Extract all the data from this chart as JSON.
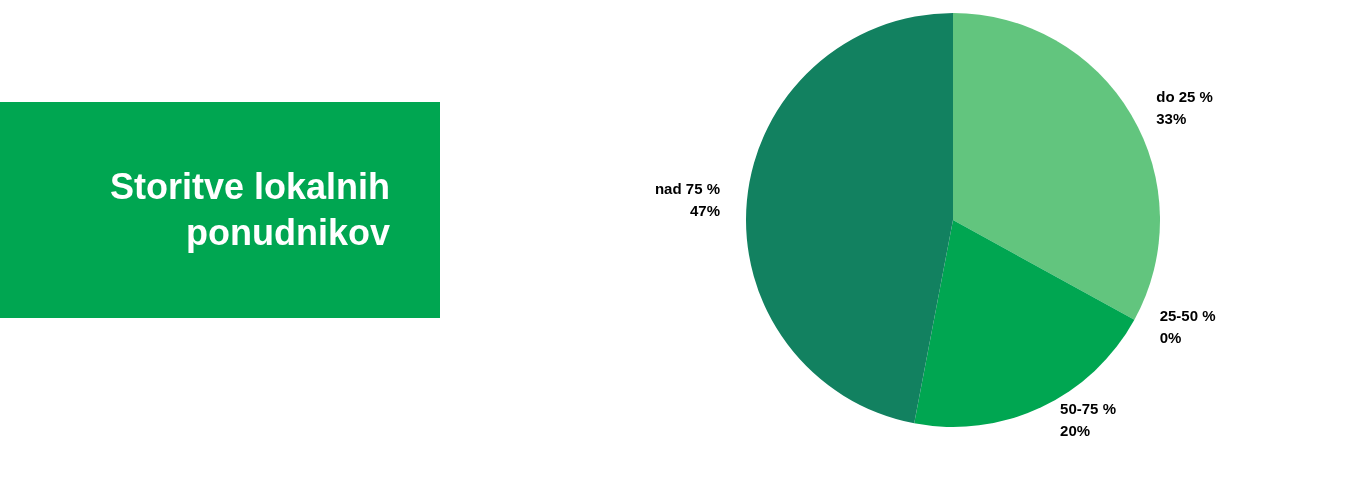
{
  "chart_data": {
    "type": "pie",
    "title": "Storitve lokalnih ponudnikov",
    "categories": [
      "do 25 %",
      "25-50 %",
      "50-75 %",
      "nad 75 %"
    ],
    "values": [
      33,
      0,
      20,
      47
    ],
    "colors": [
      "#62c57e",
      "#3cb371",
      "#00a651",
      "#128160"
    ],
    "value_labels": [
      "33%",
      "0%",
      "20%",
      "47%"
    ],
    "legend": false
  }
}
